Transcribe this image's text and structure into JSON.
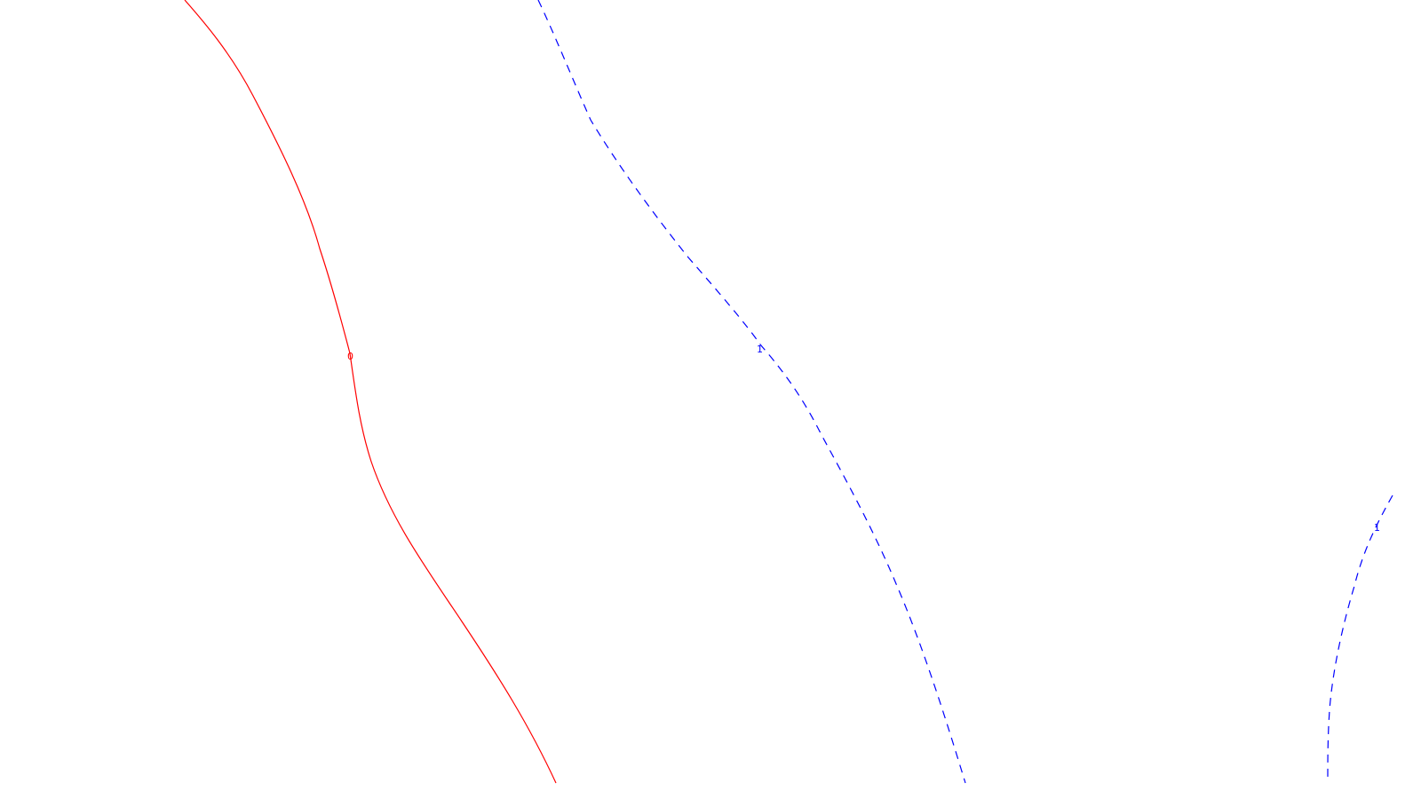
{
  "colors": {
    "background": "#ffffff",
    "contour_0": "#ff0000",
    "contour_1": "#0000ff"
  },
  "contours": [
    {
      "id": "contour-0",
      "level_label": "0",
      "style": "solid",
      "color": "#ff0000"
    },
    {
      "id": "contour-1-left",
      "level_label": "1",
      "style": "dashed",
      "color": "#0000ff"
    },
    {
      "id": "contour-1-right",
      "level_label": "1",
      "style": "dashed",
      "color": "#0000ff"
    }
  ]
}
